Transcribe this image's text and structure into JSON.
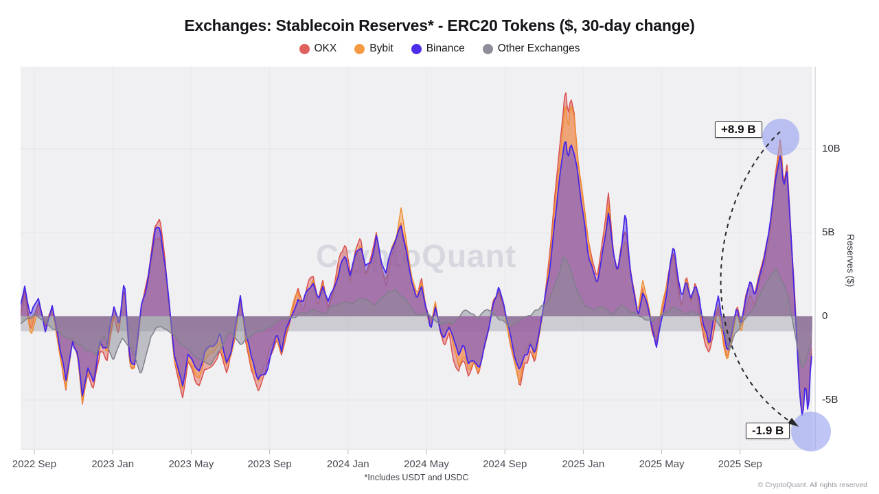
{
  "title": "Exchanges: Stablecoin Reserves* - ERC20 Tokens ($, 30-day change)",
  "watermark": "CryptoQuant",
  "footnote": "*Includes USDT and USDC",
  "copyright": "© CryptoQuant. All rights reserved",
  "legend": [
    {
      "label": "OKX",
      "color": "#e0605e"
    },
    {
      "label": "Bybit",
      "color": "#f49a43"
    },
    {
      "label": "Binance",
      "color": "#4f2de8"
    },
    {
      "label": "Other Exchanges",
      "color": "#8e8e9a"
    }
  ],
  "y_axis": {
    "title": "Reserves ($)",
    "ticks": [
      {
        "label": "10B",
        "value": 10
      },
      {
        "label": "5B",
        "value": 5
      },
      {
        "label": "0",
        "value": 0
      },
      {
        "label": "-5B",
        "value": -5
      }
    ]
  },
  "x_axis": {
    "ticks": [
      {
        "label": "2022 Sep",
        "m": 0
      },
      {
        "label": "2023 Jan",
        "m": 4
      },
      {
        "label": "2023 May",
        "m": 8
      },
      {
        "label": "2023 Sep",
        "m": 12
      },
      {
        "label": "2024 Jan",
        "m": 16
      },
      {
        "label": "2024 May",
        "m": 20
      },
      {
        "label": "2024 Sep",
        "m": 24
      },
      {
        "label": "2025 Jan",
        "m": 28
      },
      {
        "label": "2025 May",
        "m": 32
      },
      {
        "label": "2025 Sep",
        "m": 36
      }
    ]
  },
  "annotations": [
    {
      "text": "+8.9 B",
      "value_billion": 8.9
    },
    {
      "text": "-1.9 B",
      "value_billion": -1.9
    }
  ],
  "chart_data": {
    "type": "area",
    "title": "Exchanges: Stablecoin Reserves* - ERC20 Tokens ($, 30-day change)",
    "ylabel": "Reserves ($)",
    "y_unit": "billion USD",
    "ylim": [
      -7.9,
      14.9
    ],
    "x_unit": "months since 2022 Sep",
    "xlim": [
      -0.7,
      39.7
    ],
    "grid": true,
    "legend_position": "top-center",
    "x": [
      -0.7,
      -0.49,
      -0.18,
      0.21,
      0.56,
      0.91,
      1.26,
      1.61,
      1.96,
      2.21,
      2.45,
      2.73,
      3.01,
      3.36,
      3.71,
      4.06,
      4.31,
      4.59,
      4.87,
      5.11,
      5.46,
      5.81,
      6.16,
      6.41,
      6.65,
      6.9,
      7.14,
      7.56,
      7.84,
      8.13,
      8.41,
      8.69,
      9.11,
      9.46,
      9.81,
      10.19,
      10.51,
      10.79,
      11.07,
      11.42,
      11.77,
      12.05,
      12.36,
      12.61,
      12.89,
      13.17,
      13.45,
      13.7,
      13.98,
      14.22,
      14.47,
      14.71,
      14.99,
      15.31,
      15.62,
      15.87,
      16.11,
      16.39,
      16.64,
      16.88,
      17.16,
      17.44,
      17.72,
      17.93,
      18.21,
      18.49,
      18.7,
      18.98,
      19.26,
      19.51,
      19.75,
      19.96,
      20.21,
      20.46,
      20.67,
      20.91,
      21.16,
      21.4,
      21.65,
      21.89,
      22.14,
      22.42,
      22.66,
      22.91,
      23.19,
      23.43,
      23.68,
      23.96,
      24.24,
      24.52,
      24.76,
      25.01,
      25.29,
      25.53,
      25.78,
      26.02,
      26.3,
      26.55,
      26.8,
      27.08,
      27.22,
      27.36,
      27.53,
      27.78,
      27.99,
      28.23,
      28.48,
      28.69,
      28.93,
      29.11,
      29.28,
      29.53,
      29.74,
      29.98,
      30.16,
      30.37,
      30.58,
      30.79,
      31.03,
      31.28,
      31.49,
      31.73,
      31.91,
      32.19,
      32.43,
      32.61,
      32.82,
      33.03,
      33.24,
      33.48,
      33.73,
      33.94,
      34.18,
      34.43,
      34.64,
      34.89,
      35.13,
      35.34,
      35.59,
      35.83,
      36.04,
      36.29,
      36.53,
      36.74,
      36.99,
      37.23,
      37.44,
      37.69,
      37.86,
      38.07,
      38.21,
      38.39,
      38.56,
      38.74,
      38.91,
      39.05,
      39.19,
      39.33,
      39.47,
      39.61
    ],
    "series": [
      {
        "name": "OKX",
        "color_line": "#d9504c",
        "color_fill": "#e06360",
        "values": [
          0.2,
          1.5,
          -0.8,
          0.7,
          -0.6,
          0.4,
          -2.0,
          -4.6,
          -1.5,
          -2.5,
          -5.4,
          -3.3,
          -3.9,
          -1.9,
          -2.6,
          0.1,
          -1.2,
          1.9,
          -2.9,
          -3.2,
          0.5,
          2.3,
          5.1,
          5.5,
          3.6,
          0.7,
          -2.8,
          -5.0,
          -3.0,
          -3.7,
          -4.3,
          -2.9,
          -2.5,
          -1.8,
          -3.0,
          -1.4,
          1.2,
          -1.4,
          -3.3,
          -4.4,
          -3.6,
          -2.4,
          -1.3,
          -2.2,
          -0.7,
          0.4,
          1.5,
          0.5,
          1.9,
          2.5,
          0.9,
          2.1,
          0.4,
          1.7,
          3.5,
          4.1,
          2.3,
          3.7,
          4.6,
          2.7,
          3.4,
          5.1,
          2.9,
          2.0,
          3.9,
          5.1,
          5.9,
          4.4,
          2.1,
          1.0,
          1.9,
          0.2,
          -1.0,
          0.6,
          -0.7,
          -1.6,
          -0.9,
          -2.3,
          -3.3,
          -2.6,
          -3.6,
          -2.8,
          -3.3,
          -2.0,
          -0.7,
          1.0,
          1.5,
          0.3,
          -1.5,
          -3.2,
          -4.2,
          -2.6,
          -2.0,
          -3.0,
          -1.4,
          0.6,
          3.4,
          7.0,
          10.0,
          13.8,
          12.0,
          13.3,
          12.4,
          9.2,
          7.4,
          5.2,
          3.4,
          2.2,
          3.8,
          5.2,
          7.1,
          3.8,
          2.6,
          4.4,
          5.2,
          3.3,
          1.7,
          0.3,
          2.0,
          0.6,
          -0.8,
          -1.8,
          -0.4,
          1.4,
          3.1,
          4.2,
          2.2,
          0.8,
          2.4,
          1.0,
          2.2,
          0.6,
          -1.1,
          -2.1,
          -0.8,
          0.6,
          -1.5,
          -2.6,
          -1.3,
          0.3,
          -0.8,
          1.0,
          2.0,
          1.2,
          2.8,
          3.7,
          4.9,
          7.2,
          9.3,
          11.3,
          8.3,
          9.4,
          6.0,
          2.3,
          -1.8,
          -5.0,
          -6.5,
          -4.0,
          -6.0,
          -2.2
        ]
      },
      {
        "name": "Bybit",
        "color_line": "#ef8c2f",
        "color_fill": "#f59d45",
        "values": [
          0.2,
          1.4,
          -0.7,
          0.7,
          -0.6,
          0.4,
          -1.9,
          -4.3,
          -1.4,
          -2.3,
          -5.0,
          -3.1,
          -3.6,
          -1.8,
          -2.4,
          0.1,
          -1.1,
          1.8,
          -2.7,
          -3.0,
          0.5,
          2.1,
          4.7,
          5.1,
          3.3,
          0.7,
          -2.6,
          -4.7,
          -2.8,
          -3.4,
          -4.0,
          -2.7,
          -2.3,
          -1.7,
          -2.8,
          -1.3,
          1.1,
          -1.3,
          -3.1,
          -4.1,
          -3.3,
          -2.2,
          -1.2,
          -2.0,
          -0.7,
          0.4,
          1.4,
          0.5,
          1.8,
          2.3,
          0.8,
          2.0,
          0.4,
          1.6,
          3.3,
          3.8,
          2.1,
          3.4,
          4.3,
          2.5,
          3.2,
          4.7,
          2.7,
          1.9,
          3.6,
          4.7,
          6.2,
          4.1,
          2.0,
          0.9,
          1.8,
          0.2,
          -0.9,
          0.6,
          -0.7,
          -1.5,
          -0.8,
          -2.1,
          -3.1,
          -2.4,
          -3.3,
          -2.6,
          -3.1,
          -1.9,
          -0.7,
          0.9,
          1.4,
          0.3,
          -1.4,
          -3.0,
          -4.4,
          -2.4,
          -1.9,
          -2.8,
          -1.3,
          0.6,
          3.2,
          6.5,
          9.3,
          13.2,
          11.2,
          12.6,
          11.6,
          8.6,
          6.9,
          4.8,
          3.2,
          2.0,
          3.5,
          4.8,
          6.6,
          3.5,
          2.4,
          4.1,
          4.8,
          3.1,
          1.6,
          0.3,
          1.9,
          0.6,
          -0.7,
          -1.7,
          -0.4,
          1.3,
          2.9,
          3.9,
          2.0,
          0.7,
          2.2,
          0.9,
          2.0,
          0.6,
          -1.0,
          -2.0,
          -0.7,
          0.6,
          -1.4,
          -2.4,
          -1.2,
          0.3,
          -0.7,
          0.9,
          1.9,
          1.1,
          2.6,
          3.4,
          4.6,
          6.7,
          8.6,
          10.6,
          7.7,
          8.7,
          5.6,
          2.1,
          -1.7,
          -4.7,
          -6.1,
          -3.7,
          -5.6,
          -2.0
        ]
      },
      {
        "name": "Binance",
        "color_line": "#4526e9",
        "color_fill": "#5b44e0",
        "values": [
          0.5,
          1.8,
          -0.5,
          1.0,
          -0.4,
          0.6,
          -1.6,
          -3.9,
          -1.2,
          -2.1,
          -4.9,
          -3.0,
          -3.6,
          -1.6,
          -2.3,
          0.3,
          -0.9,
          2.1,
          -2.5,
          -2.9,
          0.7,
          2.1,
          4.9,
          5.2,
          3.4,
          0.9,
          -2.4,
          -4.6,
          -2.6,
          -3.3,
          -3.8,
          -2.5,
          -2.2,
          -1.5,
          -2.6,
          -1.1,
          1.4,
          -1.1,
          -2.9,
          -3.9,
          -3.2,
          -2.1,
          -1.1,
          -1.9,
          -0.5,
          0.5,
          1.3,
          0.7,
          1.7,
          2.2,
          1.1,
          1.9,
          0.6,
          1.5,
          3.2,
          3.8,
          2.5,
          3.4,
          4.3,
          2.9,
          3.2,
          4.8,
          3.1,
          2.2,
          3.6,
          4.7,
          5.5,
          4.1,
          2.3,
          1.2,
          1.7,
          0.4,
          -0.7,
          0.8,
          -0.4,
          -1.3,
          -0.6,
          -1.9,
          -2.9,
          -2.2,
          -3.1,
          -2.4,
          -2.9,
          -1.6,
          -0.4,
          1.2,
          1.7,
          0.6,
          -1.1,
          -2.7,
          -3.4,
          -2.2,
          -1.6,
          -2.5,
          -1.1,
          0.8,
          3.0,
          6.0,
          8.6,
          10.8,
          9.4,
          10.3,
          9.8,
          7.9,
          6.4,
          4.4,
          3.0,
          2.0,
          3.4,
          4.6,
          5.8,
          3.4,
          2.4,
          4.0,
          5.9,
          3.0,
          1.5,
          0.5,
          1.8,
          0.8,
          -0.6,
          -1.5,
          -0.2,
          1.2,
          2.8,
          3.8,
          2.0,
          1.0,
          2.2,
          1.2,
          2.0,
          0.8,
          -0.8,
          -1.8,
          -0.5,
          0.8,
          -1.2,
          -2.3,
          -1.0,
          0.5,
          -0.5,
          1.2,
          2.2,
          1.4,
          2.6,
          3.4,
          4.5,
          6.5,
          8.2,
          9.7,
          7.5,
          8.5,
          5.5,
          2.0,
          -1.5,
          -4.5,
          -6.0,
          -3.5,
          -5.6,
          -1.9
        ]
      },
      {
        "name": "Other Exchanges",
        "color_line": "#7f7f8b",
        "color_fill": "#8b8b97",
        "x": [
          -0.7,
          0.0,
          0.7,
          1.4,
          2.1,
          2.63,
          3.15,
          3.57,
          4.03,
          4.48,
          4.97,
          5.43,
          5.95,
          6.48,
          7.01,
          7.53,
          8.06,
          8.58,
          9.04,
          9.53,
          9.98,
          10.51,
          11.03,
          11.56,
          12.08,
          12.61,
          13.13,
          13.66,
          14.19,
          14.71,
          15.24,
          15.76,
          16.29,
          16.81,
          17.34,
          17.86,
          18.39,
          18.91,
          19.44,
          19.96,
          20.49,
          21.02,
          21.54,
          22.07,
          22.59,
          23.12,
          23.64,
          24.17,
          24.69,
          25.22,
          25.74,
          26.27,
          26.69,
          26.97,
          27.32,
          27.67,
          28.09,
          28.55,
          29.0,
          29.49,
          29.98,
          30.47,
          31.0,
          31.52,
          32.05,
          32.57,
          33.1,
          33.62,
          34.15,
          34.68,
          35.2,
          35.45,
          35.73,
          36.08,
          36.43,
          36.78,
          37.13,
          37.48,
          37.83,
          38.18,
          38.46,
          38.7,
          38.95,
          39.16,
          39.4,
          39.61
        ],
        "values": [
          -0.3,
          0.3,
          -0.5,
          -0.9,
          -1.4,
          -1.9,
          -2.3,
          -1.1,
          -2.7,
          -1.5,
          -2.2,
          -3.5,
          -1.2,
          -0.7,
          -1.0,
          -1.6,
          -2.0,
          -2.5,
          -2.8,
          -2.0,
          -0.9,
          -1.5,
          -1.2,
          -1.0,
          -0.7,
          -0.4,
          0.0,
          0.3,
          0.4,
          0.1,
          0.6,
          0.9,
          0.7,
          1.1,
          0.8,
          1.2,
          1.4,
          0.9,
          0.4,
          0.1,
          -0.3,
          -0.5,
          -0.2,
          0.3,
          0.1,
          0.4,
          -0.2,
          -0.6,
          -0.3,
          0.2,
          0.5,
          1.0,
          2.2,
          3.4,
          2.8,
          1.6,
          0.6,
          0.2,
          0.5,
          0.3,
          0.6,
          0.2,
          -0.2,
          -0.5,
          0.3,
          0.5,
          0.2,
          0.4,
          -0.3,
          -0.2,
          -1.0,
          -2.1,
          -1.2,
          -0.5,
          0.3,
          0.8,
          1.5,
          2.2,
          2.8,
          2.0,
          1.0,
          -0.5,
          -2.0,
          -3.2,
          -2.4,
          -1.5
        ]
      }
    ]
  }
}
